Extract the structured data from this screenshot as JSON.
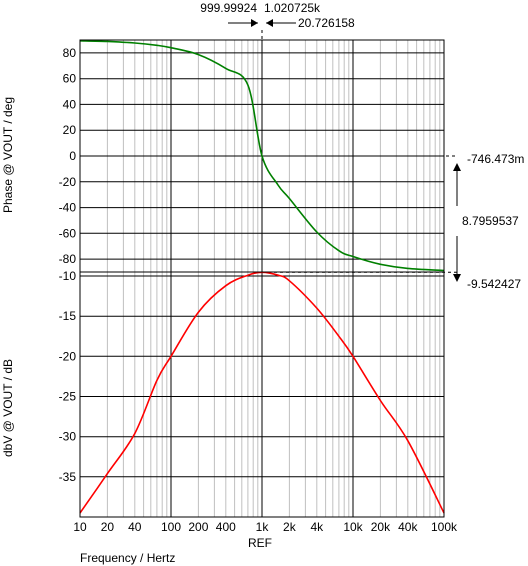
{
  "chart_data": [
    {
      "type": "line",
      "ylabel": "Phase @ VOUT / deg",
      "xscale": "log",
      "xlim": [
        10,
        100000
      ],
      "ylim": [
        -90,
        90
      ],
      "yticks": [
        80,
        60,
        40,
        20,
        0,
        -20,
        -40,
        -60,
        -80
      ],
      "grid": true,
      "series": [
        {
          "color": "#008000",
          "x": [
            10,
            20,
            40,
            70,
            100,
            200,
            400,
            700,
            1000,
            1500,
            2000,
            4000,
            7000,
            10000,
            20000,
            40000,
            100000
          ],
          "values": [
            89.4,
            88.9,
            87.7,
            85.9,
            84.0,
            78.7,
            68.0,
            55.0,
            0,
            -22.5,
            -33.0,
            -59.0,
            -73.5,
            -78.0,
            -84.0,
            -87.2,
            -88.8
          ]
        }
      ]
    },
    {
      "type": "line",
      "ylabel": "dbV @ VOUT / dB",
      "xlabel": "Frequency / Hertz",
      "xscale": "log",
      "xlim": [
        10,
        100000
      ],
      "ylim": [
        -40,
        -9.5
      ],
      "yticks": [
        -10,
        -15,
        -20,
        -25,
        -30,
        -35
      ],
      "grid": true,
      "series": [
        {
          "color": "#ff0000",
          "x": [
            10,
            20,
            40,
            70,
            100,
            200,
            400,
            700,
            1000,
            1500,
            2000,
            4000,
            7000,
            10000,
            20000,
            40000,
            100000
          ],
          "values": [
            -39.5,
            -34.6,
            -29.6,
            -23.0,
            -20.0,
            -14.5,
            -11.2,
            -9.9,
            -9.54,
            -9.9,
            -10.6,
            -14.0,
            -17.5,
            -20.0,
            -25.5,
            -30.5,
            -39.5
          ]
        }
      ]
    }
  ],
  "x_tick_labels": [
    "10",
    "20",
    "40",
    "100",
    "200",
    "400",
    "1k",
    "2k",
    "4k",
    "10k",
    "20k",
    "40k",
    "100k"
  ],
  "x_tick_values": [
    10,
    20,
    40,
    100,
    200,
    400,
    1000,
    2000,
    4000,
    10000,
    20000,
    40000,
    100000
  ],
  "ref_label": "REF",
  "cursor": {
    "a_label": "999.99924",
    "b_label": "1.020725k",
    "delta_label": "20.726158",
    "y_top_label": "-746.473m",
    "y_delta_label": "8.7959537",
    "y_bottom_label": "-9.542427",
    "a_freq": 999.99924,
    "b_freq": 1020.725
  }
}
